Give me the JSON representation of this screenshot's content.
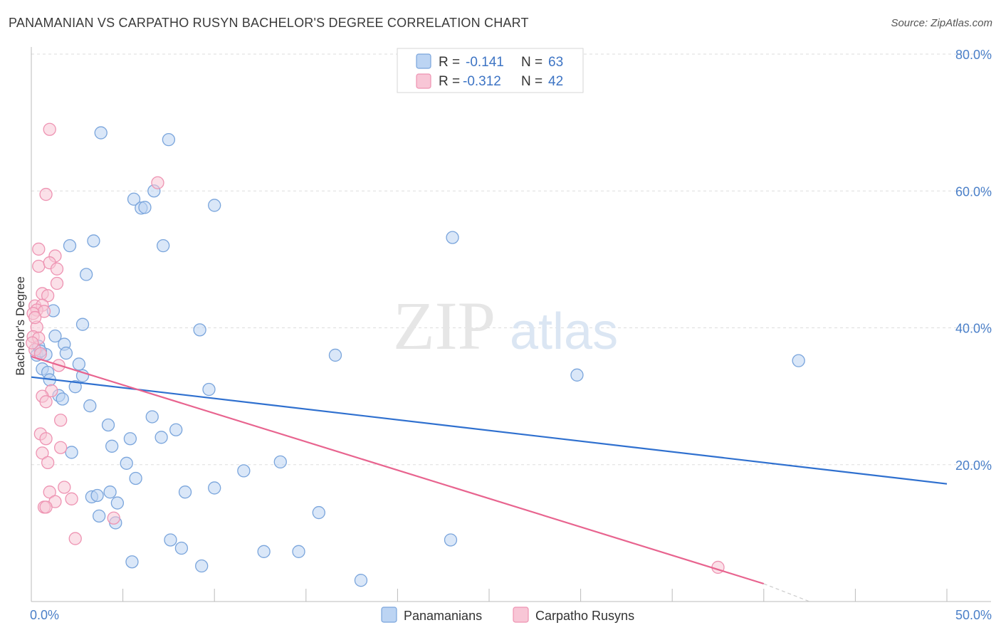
{
  "title": "PANAMANIAN VS CARPATHO RUSYN BACHELOR'S DEGREE CORRELATION CHART",
  "source": "Source: ZipAtlas.com",
  "watermark": {
    "zip": "ZIP",
    "atlas": "atlas"
  },
  "colors": {
    "blue_fill": "#bcd4f3",
    "blue_stroke": "#7aa5dc",
    "blue_line": "#2f70cf",
    "pink_fill": "#f8c6d6",
    "pink_stroke": "#ee93b2",
    "pink_line": "#e8648f",
    "axis_text": "#4a7fc8",
    "grid": "#dddddd"
  },
  "legend": {
    "r_label": "R =",
    "n_label": "N =",
    "blue": {
      "r": "-0.141",
      "n": "63"
    },
    "pink": {
      "r": "-0.312",
      "n": "42"
    }
  },
  "chart_data": {
    "type": "scatter",
    "xlabel": "",
    "ylabel": "Bachelor's Degree",
    "xlim": [
      0,
      50
    ],
    "ylim": [
      0,
      80
    ],
    "x_tick_labels": [
      "0.0%",
      "50.0%"
    ],
    "y_ticks": [
      20,
      40,
      60,
      80
    ],
    "y_tick_labels": [
      "20.0%",
      "40.0%",
      "60.0%",
      "80.0%"
    ],
    "grid": true,
    "series": [
      {
        "name": "Panamanians",
        "color": "blue",
        "trend": {
          "x": [
            0,
            50
          ],
          "y": [
            32.8,
            17.2
          ]
        },
        "points": [
          [
            3.8,
            68.5
          ],
          [
            7.5,
            67.5
          ],
          [
            6.7,
            60.0
          ],
          [
            5.6,
            58.8
          ],
          [
            6.0,
            57.5
          ],
          [
            6.2,
            57.6
          ],
          [
            10.0,
            57.9
          ],
          [
            3.4,
            52.7
          ],
          [
            2.1,
            52.0
          ],
          [
            7.2,
            52.0
          ],
          [
            23.0,
            53.2
          ],
          [
            3.0,
            47.8
          ],
          [
            1.2,
            42.5
          ],
          [
            2.8,
            40.5
          ],
          [
            9.2,
            39.7
          ],
          [
            1.3,
            38.8
          ],
          [
            1.8,
            37.6
          ],
          [
            0.4,
            37.3
          ],
          [
            0.3,
            36.0
          ],
          [
            0.8,
            36.1
          ],
          [
            1.9,
            36.3
          ],
          [
            16.6,
            36.0
          ],
          [
            41.9,
            35.2
          ],
          [
            2.6,
            34.7
          ],
          [
            0.6,
            34.0
          ],
          [
            0.9,
            33.5
          ],
          [
            2.8,
            33.0
          ],
          [
            29.8,
            33.1
          ],
          [
            1.0,
            32.4
          ],
          [
            2.4,
            31.4
          ],
          [
            9.7,
            31.0
          ],
          [
            1.5,
            30.1
          ],
          [
            1.7,
            29.6
          ],
          [
            3.2,
            28.6
          ],
          [
            6.6,
            27.0
          ],
          [
            4.2,
            25.8
          ],
          [
            7.9,
            25.1
          ],
          [
            5.4,
            23.8
          ],
          [
            7.1,
            24.0
          ],
          [
            4.4,
            22.7
          ],
          [
            2.2,
            21.8
          ],
          [
            5.2,
            20.2
          ],
          [
            13.6,
            20.4
          ],
          [
            11.6,
            19.1
          ],
          [
            5.7,
            18.0
          ],
          [
            10.0,
            16.6
          ],
          [
            8.4,
            16.0
          ],
          [
            4.3,
            16.0
          ],
          [
            3.3,
            15.3
          ],
          [
            3.6,
            15.5
          ],
          [
            4.7,
            14.4
          ],
          [
            15.7,
            13.0
          ],
          [
            3.7,
            12.5
          ],
          [
            4.6,
            11.5
          ],
          [
            7.6,
            9.0
          ],
          [
            8.2,
            7.8
          ],
          [
            12.7,
            7.3
          ],
          [
            14.6,
            7.3
          ],
          [
            22.9,
            9.0
          ],
          [
            5.5,
            5.8
          ],
          [
            9.3,
            5.2
          ],
          [
            18.0,
            3.1
          ],
          [
            0.5,
            36.6
          ]
        ]
      },
      {
        "name": "Carpatho Rusyns",
        "color": "pink",
        "trend": {
          "x": [
            0,
            40
          ],
          "y": [
            35.8,
            2.6
          ]
        },
        "trend_dashed": {
          "x": [
            40,
            42.5
          ],
          "y": [
            2.6,
            0.0
          ]
        },
        "points": [
          [
            1.0,
            69.0
          ],
          [
            0.8,
            59.5
          ],
          [
            6.9,
            61.2
          ],
          [
            0.4,
            51.5
          ],
          [
            1.3,
            50.5
          ],
          [
            0.4,
            49.0
          ],
          [
            1.0,
            49.5
          ],
          [
            1.4,
            48.6
          ],
          [
            1.4,
            46.5
          ],
          [
            0.6,
            45.0
          ],
          [
            0.9,
            44.7
          ],
          [
            0.2,
            43.2
          ],
          [
            0.6,
            43.3
          ],
          [
            0.3,
            42.6
          ],
          [
            0.7,
            42.4
          ],
          [
            0.1,
            42.1
          ],
          [
            0.3,
            40.1
          ],
          [
            0.1,
            38.7
          ],
          [
            0.4,
            38.5
          ],
          [
            0.2,
            36.8
          ],
          [
            0.5,
            36.2
          ],
          [
            1.5,
            34.5
          ],
          [
            1.1,
            30.8
          ],
          [
            0.6,
            30.0
          ],
          [
            0.8,
            29.2
          ],
          [
            1.6,
            26.5
          ],
          [
            0.5,
            24.5
          ],
          [
            0.8,
            23.8
          ],
          [
            1.6,
            22.5
          ],
          [
            0.6,
            21.7
          ],
          [
            0.9,
            20.3
          ],
          [
            1.8,
            16.7
          ],
          [
            1.0,
            16.0
          ],
          [
            2.2,
            15.0
          ],
          [
            1.3,
            14.6
          ],
          [
            0.7,
            13.8
          ],
          [
            0.8,
            13.8
          ],
          [
            4.5,
            12.2
          ],
          [
            2.4,
            9.2
          ],
          [
            37.5,
            5.0
          ],
          [
            0.05,
            37.8
          ],
          [
            0.2,
            41.5
          ]
        ]
      }
    ]
  }
}
